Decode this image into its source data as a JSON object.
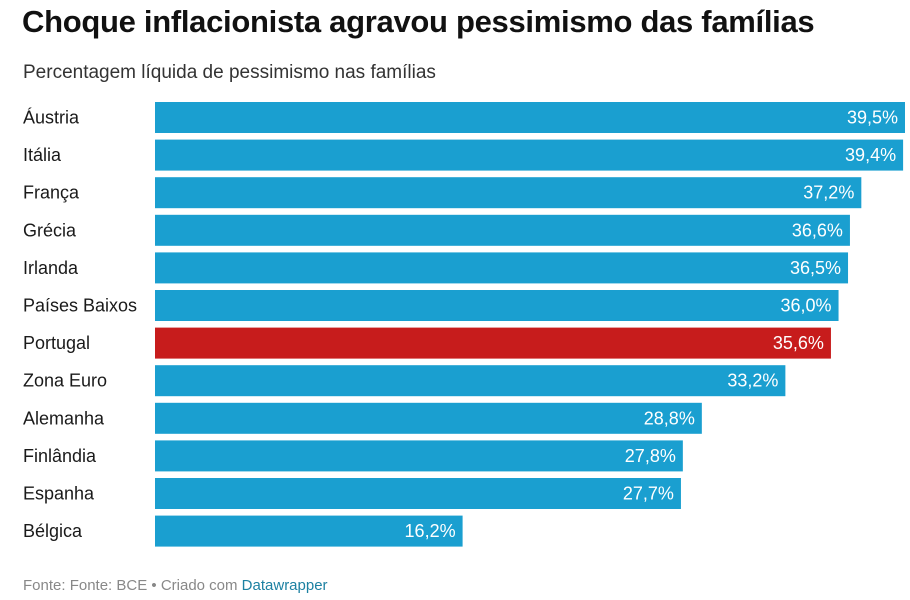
{
  "header": {
    "title": "Choque inflacionista agravou pessimismo das famílias",
    "subtitle": "Percentagem líquida de pessimismo nas famílias"
  },
  "colors": {
    "bar": "#1a9fd0",
    "highlight": "#c71c1c",
    "label_text": "#ffffff"
  },
  "chart_data": {
    "type": "bar",
    "orientation": "horizontal",
    "categories": [
      "Áustria",
      "Itália",
      "França",
      "Grécia",
      "Irlanda",
      "Países Baixos",
      "Portugal",
      "Zona Euro",
      "Alemanha",
      "Finlândia",
      "Espanha",
      "Bélgica"
    ],
    "values": [
      39.5,
      39.4,
      37.2,
      36.6,
      36.5,
      36.0,
      35.6,
      33.2,
      28.8,
      27.8,
      27.7,
      16.2
    ],
    "value_labels": [
      "39,5%",
      "39,4%",
      "37,2%",
      "36,6%",
      "36,5%",
      "36,0%",
      "35,6%",
      "33,2%",
      "28,8%",
      "27,8%",
      "27,7%",
      "16,2%"
    ],
    "highlighted_category": "Portugal",
    "xlim": [
      0,
      39.5
    ],
    "grid": false,
    "legend": "none"
  },
  "footer": {
    "source": "Fonte: Fonte: BCE • Criado com ",
    "tool": "Datawrapper"
  }
}
